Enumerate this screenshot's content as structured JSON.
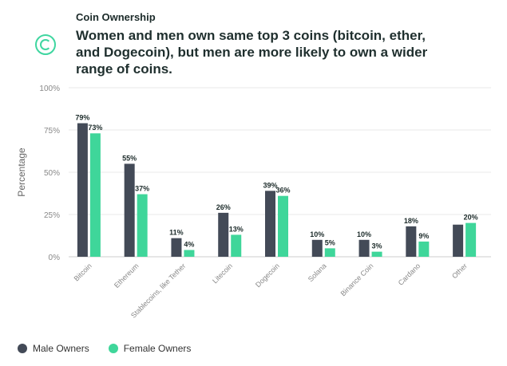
{
  "header": {
    "eyebrow": "Coin Ownership",
    "title": "Women and men own same top 3 coins (bitcoin, ether, and Dogecoin), but men are more likely to own a wider range of coins."
  },
  "legend": {
    "male_label": "Male Owners",
    "female_label": "Female Owners"
  },
  "colors": {
    "male": "#434a57",
    "female": "#3fd69a",
    "grid": "#e8e8e8",
    "axis_text": "#888888"
  },
  "chart_data": {
    "type": "bar",
    "title": "Women and men own same top 3 coins (bitcoin, ether, and Dogecoin), but men are more likely to own a wider range of coins.",
    "ylabel": "Percentage",
    "xlabel": "",
    "ylim": [
      0,
      100
    ],
    "yticks": [
      "0%",
      "25%",
      "50%",
      "75%",
      "100%"
    ],
    "categories": [
      "Bitcoin",
      "Ethereum",
      "Stablecoins, like Tether",
      "Litecoin",
      "Dogecoin",
      "Solana",
      "Binance Coin",
      "Cardano",
      "Other"
    ],
    "series": [
      {
        "name": "Male Owners",
        "values": [
          79,
          55,
          11,
          26,
          39,
          10,
          10,
          18,
          19
        ],
        "labels": [
          "79%",
          "55%",
          "11%",
          "26%",
          "39%",
          "10%",
          "10%",
          "18%",
          ""
        ]
      },
      {
        "name": "Female Owners",
        "values": [
          73,
          37,
          4,
          13,
          36,
          5,
          3,
          9,
          20
        ],
        "labels": [
          "73%",
          "37%",
          "4%",
          "13%",
          "36%",
          "5%",
          "3%",
          "9%",
          "20%"
        ]
      }
    ],
    "grid": true,
    "legend_position": "bottom-left"
  }
}
